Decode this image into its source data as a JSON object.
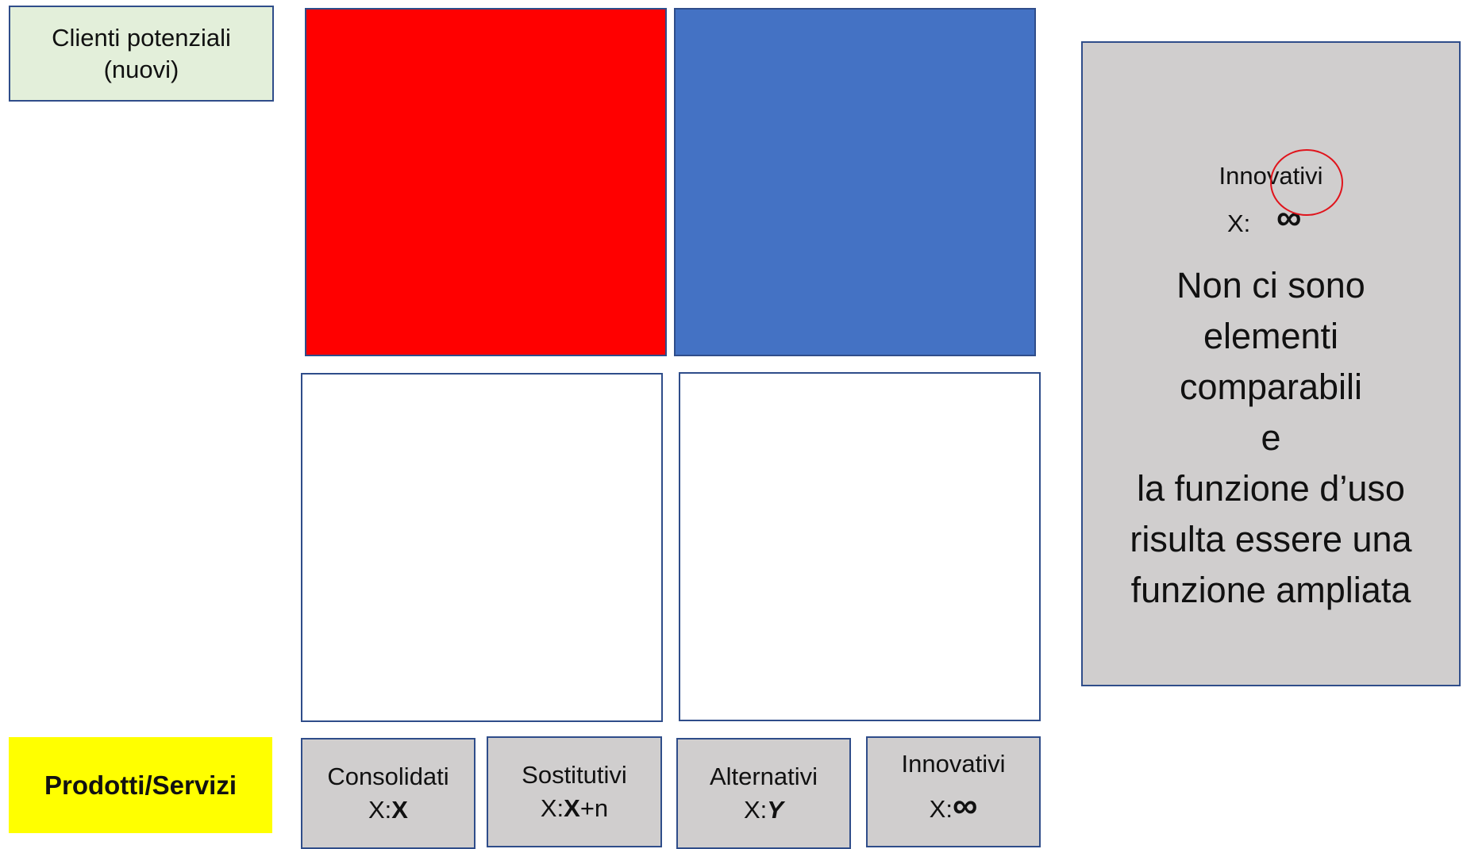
{
  "clienti": {
    "line1": "Clienti potenziali",
    "line2": "(nuovi)"
  },
  "prodotti": {
    "label": "Prodotti/Servizi"
  },
  "quadrants": {
    "top_left_color": "#ff0000",
    "top_right_color": "#4472c4",
    "bottom_left_color": "#ffffff",
    "bottom_right_color": "#ffffff"
  },
  "categories": [
    {
      "name": "Consolidati",
      "prefix": "X:",
      "value": "X",
      "suffix": ""
    },
    {
      "name": "Sostitutivi",
      "prefix": "X:",
      "value": "X",
      "suffix": "+n"
    },
    {
      "name": "Alternativi",
      "prefix": "X:",
      "value": "Y",
      "suffix": ""
    },
    {
      "name": "Innovativi",
      "prefix": "X:",
      "value": "∞",
      "suffix": ""
    }
  ],
  "side_panel": {
    "title": "Innovativi",
    "x_label": "X:",
    "infinity": "∞",
    "lines": [
      "Non ci sono",
      "elementi",
      "comparabili",
      "e",
      "la funzione d’uso",
      "risulta essere una",
      "funzione ampliata"
    ]
  }
}
